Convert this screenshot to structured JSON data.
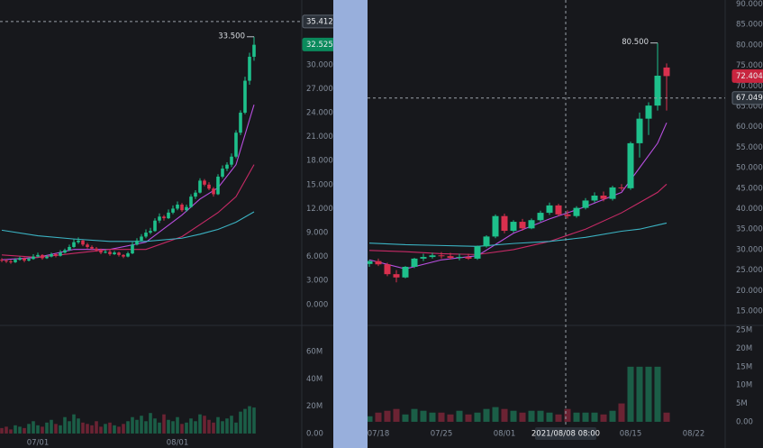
{
  "chart_data": [
    {
      "type": "candlestick",
      "xlim": [
        -0.4,
        66.6
      ],
      "xticks": [
        {
          "value": 8,
          "label": "07/01"
        },
        {
          "value": 39,
          "label": "08/01"
        }
      ],
      "ylim": [
        -2.5,
        38.1
      ],
      "yticks": [
        {
          "value": 0,
          "label": "0.000"
        },
        {
          "value": 3,
          "label": "3.000"
        },
        {
          "value": 6,
          "label": "6.000"
        },
        {
          "value": 9,
          "label": "9.000"
        },
        {
          "value": 12,
          "label": "12.000"
        },
        {
          "value": 15,
          "label": "15.000"
        },
        {
          "value": 18,
          "label": "18.000"
        },
        {
          "value": 21,
          "label": "21.000"
        },
        {
          "value": 24,
          "label": "24.000"
        },
        {
          "value": 27,
          "label": "27.000"
        },
        {
          "value": 30,
          "label": "30.000"
        }
      ],
      "volume_ylim": [
        -4,
        78.4
      ],
      "volume_yticks": [
        {
          "value": 0,
          "label": "0.00"
        },
        {
          "value": 20,
          "label": "20M"
        },
        {
          "value": 40,
          "label": "40M"
        },
        {
          "value": 60,
          "label": "60M"
        }
      ],
      "up_color": "#1ec08b",
      "down_color": "#d9304e",
      "volume_up_color": "#1b5e47",
      "volume_down_color": "#6b2333",
      "candles": [
        [
          5.6,
          5.8,
          5.3,
          5.5
        ],
        [
          5.5,
          5.7,
          5.2,
          5.4
        ],
        [
          5.4,
          5.6,
          5.1,
          5.3
        ],
        [
          5.3,
          5.8,
          5.2,
          5.6
        ],
        [
          5.6,
          6.0,
          5.5,
          5.8
        ],
        [
          5.8,
          5.9,
          5.3,
          5.5
        ],
        [
          5.5,
          5.9,
          5.4,
          5.7
        ],
        [
          5.7,
          6.3,
          5.6,
          6.0
        ],
        [
          6.0,
          6.5,
          5.9,
          6.2
        ],
        [
          6.2,
          6.3,
          5.6,
          5.8
        ],
        [
          5.8,
          6.2,
          5.7,
          6.0
        ],
        [
          6.0,
          6.5,
          5.9,
          6.3
        ],
        [
          6.3,
          6.4,
          5.9,
          6.1
        ],
        [
          6.1,
          6.8,
          6.0,
          6.5
        ],
        [
          6.5,
          7.0,
          6.4,
          6.8
        ],
        [
          6.8,
          7.5,
          6.7,
          7.2
        ],
        [
          7.2,
          8.2,
          7.1,
          7.8
        ],
        [
          7.8,
          8.4,
          7.6,
          8.0
        ],
        [
          8.0,
          8.1,
          7.3,
          7.5
        ],
        [
          7.5,
          7.7,
          7.0,
          7.2
        ],
        [
          7.2,
          7.4,
          6.8,
          7.0
        ],
        [
          7.0,
          7.2,
          6.6,
          6.8
        ],
        [
          6.8,
          7.0,
          6.3,
          6.5
        ],
        [
          6.5,
          6.9,
          6.4,
          6.6
        ],
        [
          6.6,
          6.8,
          6.1,
          6.3
        ],
        [
          6.3,
          6.7,
          6.2,
          6.5
        ],
        [
          6.5,
          6.6,
          6.0,
          6.2
        ],
        [
          6.2,
          6.3,
          5.8,
          6.0
        ],
        [
          6.0,
          6.6,
          5.9,
          6.4
        ],
        [
          6.4,
          7.8,
          6.3,
          7.5
        ],
        [
          7.5,
          8.3,
          7.4,
          8.0
        ],
        [
          8.0,
          8.8,
          7.9,
          8.5
        ],
        [
          8.5,
          9.4,
          8.3,
          9.0
        ],
        [
          9.0,
          9.6,
          8.8,
          9.2
        ],
        [
          9.2,
          10.8,
          9.1,
          10.5
        ],
        [
          10.5,
          11.4,
          10.2,
          11.0
        ],
        [
          11.0,
          11.2,
          10.5,
          10.8
        ],
        [
          10.8,
          11.9,
          10.7,
          11.5
        ],
        [
          11.5,
          12.4,
          11.3,
          12.0
        ],
        [
          12.0,
          12.9,
          11.8,
          12.5
        ],
        [
          12.5,
          12.7,
          11.6,
          11.8
        ],
        [
          11.8,
          12.5,
          11.6,
          12.2
        ],
        [
          12.2,
          13.8,
          12.1,
          13.5
        ],
        [
          13.5,
          14.3,
          13.2,
          14.0
        ],
        [
          14.0,
          15.8,
          13.9,
          15.5
        ],
        [
          15.5,
          15.7,
          14.8,
          15.0
        ],
        [
          15.0,
          15.3,
          14.3,
          14.5
        ],
        [
          14.5,
          14.7,
          13.5,
          13.8
        ],
        [
          13.8,
          16.3,
          13.7,
          16.0
        ],
        [
          16.0,
          17.4,
          15.8,
          17.0
        ],
        [
          17.0,
          17.8,
          16.7,
          17.5
        ],
        [
          17.5,
          18.9,
          17.2,
          18.5
        ],
        [
          18.5,
          21.8,
          18.3,
          21.5
        ],
        [
          21.5,
          24.3,
          21.2,
          24.0
        ],
        [
          24.0,
          28.5,
          23.8,
          28.0
        ],
        [
          28.0,
          31.5,
          27.5,
          31.0
        ],
        [
          31.0,
          33.5,
          30.5,
          32.5
        ]
      ],
      "volumes": [
        4,
        5,
        3,
        6,
        5,
        4,
        7,
        9,
        6,
        5,
        8,
        10,
        7,
        6,
        12,
        9,
        14,
        11,
        8,
        7,
        6,
        9,
        5,
        7,
        8,
        6,
        5,
        7,
        9,
        12,
        10,
        13,
        9,
        15,
        11,
        8,
        14,
        10,
        9,
        12,
        7,
        8,
        11,
        9,
        14,
        13,
        10,
        8,
        12,
        9,
        11,
        13,
        8,
        16,
        18,
        20,
        19
      ],
      "moving_averages": [
        {
          "color": "#b84fe0",
          "x": [
            0,
            8,
            16,
            24,
            32,
            40,
            44,
            48,
            52,
            56
          ],
          "values": [
            5.6,
            5.9,
            6.9,
            6.9,
            7.8,
            11.2,
            13.2,
            14.6,
            17.5,
            25.0
          ]
        },
        {
          "color": "#c72a66",
          "x": [
            0,
            8,
            16,
            24,
            32,
            40,
            44,
            48,
            52,
            56
          ],
          "values": [
            6.2,
            5.9,
            6.4,
            6.9,
            6.9,
            8.5,
            10.0,
            11.5,
            13.5,
            17.5
          ]
        },
        {
          "color": "#3bb3c3",
          "x": [
            0,
            8,
            16,
            24,
            32,
            40,
            44,
            48,
            52,
            56
          ],
          "values": [
            9.3,
            8.6,
            8.2,
            7.9,
            7.9,
            8.3,
            8.8,
            9.4,
            10.3,
            11.6
          ]
        }
      ],
      "high_label": "33.500",
      "price_lines": [
        {
          "value": 35.412,
          "label": "35.412",
          "color": "#2b3139",
          "dashed": true
        },
        {
          "value": 32.525,
          "label": "32.525",
          "color": "#0b8a5c",
          "dashed": false
        }
      ]
    },
    {
      "type": "candlestick",
      "xlim": [
        -0.2,
        39.5
      ],
      "xticks": [
        {
          "value": 1,
          "label": "07/18"
        },
        {
          "value": 8,
          "label": "07/25"
        },
        {
          "value": 15,
          "label": "08/01"
        },
        {
          "value": 29,
          "label": "08/15"
        },
        {
          "value": 36,
          "label": "08/22"
        }
      ],
      "ylim": [
        11.7,
        91
      ],
      "yticks": [
        {
          "value": 15,
          "label": "15.000"
        },
        {
          "value": 20,
          "label": "20.000"
        },
        {
          "value": 25,
          "label": "25.000"
        },
        {
          "value": 30,
          "label": "30.000"
        },
        {
          "value": 35,
          "label": "35.000"
        },
        {
          "value": 40,
          "label": "40.000"
        },
        {
          "value": 45,
          "label": "45.000"
        },
        {
          "value": 50,
          "label": "50.000"
        },
        {
          "value": 55,
          "label": "55.000"
        },
        {
          "value": 60,
          "label": "60.000"
        },
        {
          "value": 65,
          "label": "65.000"
        },
        {
          "value": 70,
          "label": "70.000"
        },
        {
          "value": 75,
          "label": "75.000"
        },
        {
          "value": 80,
          "label": "80.000"
        },
        {
          "value": 85,
          "label": "85.000"
        },
        {
          "value": 90,
          "label": "90.000"
        }
      ],
      "volume_ylim": [
        -1,
        26.5
      ],
      "volume_yticks": [
        {
          "value": 0,
          "label": "0.00"
        },
        {
          "value": 5,
          "label": "5M"
        },
        {
          "value": 10,
          "label": "10M"
        },
        {
          "value": 15,
          "label": "15M"
        },
        {
          "value": 20,
          "label": "20M"
        },
        {
          "value": 25,
          "label": "25M"
        }
      ],
      "up_color": "#1ec08b",
      "down_color": "#d9304e",
      "volume_up_color": "#1b5e47",
      "volume_down_color": "#6b2333",
      "candles": [
        [
          26.5,
          27.5,
          25.8,
          27.2
        ],
        [
          27.2,
          27.8,
          26,
          26.4
        ],
        [
          26.4,
          26.8,
          23.5,
          24.0
        ],
        [
          24.0,
          25,
          22,
          23.2
        ],
        [
          23.2,
          26,
          23,
          25.8
        ],
        [
          25.8,
          28,
          25.5,
          27.8
        ],
        [
          27.8,
          29,
          27.2,
          28.2
        ],
        [
          28.2,
          29.2,
          27.8,
          28.6
        ],
        [
          28.6,
          29.4,
          27.8,
          28.4
        ],
        [
          28.4,
          29.2,
          27.6,
          28.0
        ],
        [
          28.0,
          29,
          27.4,
          28.2
        ],
        [
          28.2,
          29,
          27.5,
          27.8
        ],
        [
          27.8,
          31,
          27.5,
          30.8
        ],
        [
          30.8,
          33.5,
          30.5,
          33.2
        ],
        [
          33.2,
          38.6,
          32.8,
          38.2
        ],
        [
          38.2,
          38.8,
          34,
          34.6
        ],
        [
          34.6,
          37.2,
          34.2,
          36.8
        ],
        [
          36.8,
          37.5,
          34.6,
          35.2
        ],
        [
          35.2,
          37.6,
          35,
          37.2
        ],
        [
          37.2,
          39.5,
          36.8,
          39.0
        ],
        [
          39.0,
          41.5,
          38.5,
          40.8
        ],
        [
          40.8,
          41.2,
          38.2,
          38.6
        ],
        [
          38.6,
          39.6,
          37.6,
          38.2
        ],
        [
          38.2,
          40.6,
          37.8,
          40.2
        ],
        [
          40.2,
          42.6,
          39.8,
          42.0
        ],
        [
          42.0,
          44,
          41.5,
          43.2
        ],
        [
          43.2,
          44.2,
          41.8,
          42.4
        ],
        [
          42.4,
          45.6,
          42,
          45.2
        ],
        [
          45.2,
          46,
          44.4,
          45.0
        ],
        [
          45.0,
          56.4,
          44.6,
          56.0
        ],
        [
          56.0,
          63.5,
          52.5,
          62.0
        ],
        [
          62.0,
          66,
          58,
          65.2
        ],
        [
          65.2,
          80.5,
          64,
          72.5
        ],
        [
          74.5,
          75.5,
          64,
          72.404
        ]
      ],
      "volumes": [
        1.5,
        2.5,
        3,
        3.5,
        2,
        3.5,
        3,
        2.5,
        2.5,
        2,
        3,
        2,
        2.5,
        3.5,
        4,
        3.5,
        3,
        2.5,
        3,
        3,
        2.5,
        2,
        3.5,
        2.5,
        2.5,
        2.5,
        2,
        3,
        5,
        15,
        15,
        15,
        15,
        2.5
      ],
      "moving_averages": [
        {
          "color": "#b84fe0",
          "x": [
            0,
            4,
            8,
            12,
            16,
            20,
            24,
            28,
            30,
            32,
            33
          ],
          "values": [
            27.5,
            25.3,
            27.5,
            28.5,
            34,
            37.5,
            40.5,
            44,
            50,
            56,
            61
          ]
        },
        {
          "color": "#c72a66",
          "x": [
            0,
            4,
            8,
            12,
            16,
            20,
            24,
            28,
            30,
            32,
            33
          ],
          "values": [
            29.8,
            29.5,
            29,
            28.8,
            30,
            32,
            35,
            39,
            41.5,
            44,
            46
          ]
        },
        {
          "color": "#3bb3c3",
          "x": [
            0,
            4,
            8,
            12,
            16,
            20,
            24,
            28,
            30,
            32,
            33
          ],
          "values": [
            31.6,
            31.2,
            31,
            30.8,
            31.5,
            32,
            33,
            34.5,
            35,
            36,
            36.5
          ]
        }
      ],
      "high_label": "80.500",
      "price_lines": [
        {
          "value": 72.404,
          "label": "72.404",
          "color": "#c8253f",
          "dashed": false
        }
      ],
      "crosshair": {
        "x": 21.8,
        "x_label": "2021/08/08 08:00",
        "y": {
          "value": 67.049,
          "label": "67.049"
        }
      }
    }
  ]
}
